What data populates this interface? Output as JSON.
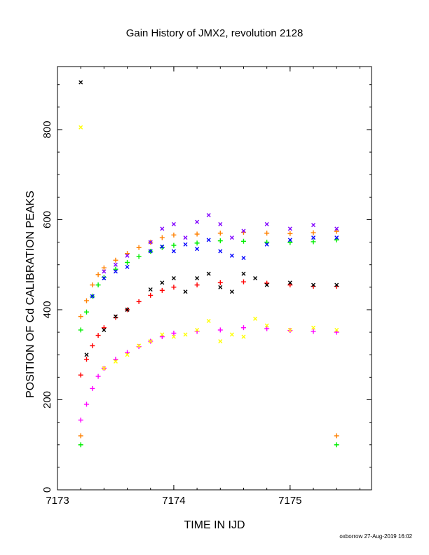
{
  "chart_data": {
    "type": "scatter",
    "title": "Gain History of JMX2, revolution 2128",
    "xlabel": "TIME IN IJD",
    "ylabel": "POSITION OF Cd CALIBRATION PEAKS",
    "xlim": [
      7173,
      7175.7
    ],
    "ylim": [
      0,
      940
    ],
    "x_ticks": [
      7173,
      7174,
      7175
    ],
    "y_ticks": [
      0,
      200,
      400,
      600,
      800
    ],
    "grid": false,
    "legend": "none",
    "footer": "oxborrow 27-Aug-2019 16:02",
    "series": [
      {
        "marker": "+",
        "color": "#ff8000",
        "points": [
          [
            7173.2,
            385
          ],
          [
            7173.25,
            420
          ],
          [
            7173.3,
            455
          ],
          [
            7173.35,
            478
          ],
          [
            7173.4,
            493
          ],
          [
            7173.5,
            510
          ],
          [
            7173.6,
            525
          ],
          [
            7173.7,
            538
          ],
          [
            7173.8,
            550
          ],
          [
            7173.9,
            560
          ],
          [
            7174.0,
            566
          ],
          [
            7174.2,
            568
          ],
          [
            7174.4,
            570
          ],
          [
            7174.6,
            572
          ],
          [
            7174.8,
            570
          ],
          [
            7175.0,
            569
          ],
          [
            7175.2,
            571
          ],
          [
            7175.4,
            574
          ]
        ]
      },
      {
        "marker": "+",
        "color": "#00ee00",
        "points": [
          [
            7173.2,
            355
          ],
          [
            7173.25,
            395
          ],
          [
            7173.3,
            430
          ],
          [
            7173.35,
            455
          ],
          [
            7173.4,
            472
          ],
          [
            7173.5,
            490
          ],
          [
            7173.6,
            505
          ],
          [
            7173.7,
            518
          ],
          [
            7173.8,
            530
          ],
          [
            7173.9,
            538
          ],
          [
            7174.0,
            543
          ],
          [
            7174.2,
            548
          ],
          [
            7174.4,
            553
          ],
          [
            7174.6,
            552
          ],
          [
            7174.8,
            550
          ],
          [
            7175.0,
            549
          ],
          [
            7175.2,
            551
          ],
          [
            7175.4,
            555
          ]
        ]
      },
      {
        "marker": "+",
        "color": "#ff0000",
        "points": [
          [
            7173.2,
            255
          ],
          [
            7173.25,
            290
          ],
          [
            7173.3,
            320
          ],
          [
            7173.35,
            343
          ],
          [
            7173.4,
            360
          ],
          [
            7173.5,
            383
          ],
          [
            7173.6,
            400
          ],
          [
            7173.7,
            418
          ],
          [
            7173.8,
            432
          ],
          [
            7173.9,
            443
          ],
          [
            7174.0,
            450
          ],
          [
            7174.2,
            455
          ],
          [
            7174.4,
            460
          ],
          [
            7174.6,
            462
          ],
          [
            7174.8,
            459
          ],
          [
            7175.0,
            455
          ],
          [
            7175.2,
            452
          ],
          [
            7175.4,
            452
          ]
        ]
      },
      {
        "marker": "+",
        "color": "#ff00ff",
        "points": [
          [
            7173.2,
            155
          ],
          [
            7173.25,
            190
          ],
          [
            7173.3,
            225
          ],
          [
            7173.35,
            252
          ],
          [
            7173.4,
            270
          ],
          [
            7173.5,
            290
          ],
          [
            7173.6,
            305
          ],
          [
            7173.7,
            318
          ],
          [
            7173.8,
            330
          ],
          [
            7173.9,
            340
          ],
          [
            7174.0,
            348
          ],
          [
            7174.2,
            352
          ],
          [
            7174.4,
            355
          ],
          [
            7174.6,
            360
          ],
          [
            7174.8,
            358
          ],
          [
            7175.0,
            354
          ],
          [
            7175.2,
            352
          ],
          [
            7175.4,
            350
          ]
        ]
      },
      {
        "marker": "x",
        "color": "#000000",
        "points": [
          [
            7173.2,
            905
          ],
          [
            7173.25,
            300
          ],
          [
            7173.4,
            355
          ],
          [
            7173.5,
            385
          ],
          [
            7173.6,
            400
          ],
          [
            7173.8,
            445
          ],
          [
            7173.9,
            460
          ],
          [
            7174.0,
            470
          ],
          [
            7174.1,
            440
          ],
          [
            7174.2,
            470
          ],
          [
            7174.3,
            480
          ],
          [
            7174.4,
            450
          ],
          [
            7174.5,
            440
          ],
          [
            7174.6,
            480
          ],
          [
            7174.7,
            470
          ],
          [
            7174.8,
            455
          ],
          [
            7175.0,
            460
          ],
          [
            7175.2,
            455
          ],
          [
            7175.4,
            455
          ]
        ]
      },
      {
        "marker": "x",
        "color": "#ffff00",
        "points": [
          [
            7173.2,
            805
          ],
          [
            7173.4,
            270
          ],
          [
            7173.5,
            285
          ],
          [
            7173.6,
            300
          ],
          [
            7173.7,
            320
          ],
          [
            7173.8,
            330
          ],
          [
            7173.9,
            345
          ],
          [
            7174.0,
            340
          ],
          [
            7174.1,
            345
          ],
          [
            7174.2,
            355
          ],
          [
            7174.3,
            375
          ],
          [
            7174.4,
            330
          ],
          [
            7174.5,
            345
          ],
          [
            7174.6,
            340
          ],
          [
            7174.7,
            380
          ],
          [
            7174.8,
            365
          ],
          [
            7175.0,
            355
          ],
          [
            7175.2,
            360
          ],
          [
            7175.4,
            355
          ]
        ]
      },
      {
        "marker": "x",
        "color": "#0000ff",
        "points": [
          [
            7173.3,
            430
          ],
          [
            7173.4,
            470
          ],
          [
            7173.5,
            485
          ],
          [
            7173.6,
            495
          ],
          [
            7173.8,
            530
          ],
          [
            7173.9,
            540
          ],
          [
            7174.0,
            530
          ],
          [
            7174.1,
            545
          ],
          [
            7174.2,
            535
          ],
          [
            7174.3,
            555
          ],
          [
            7174.4,
            530
          ],
          [
            7174.5,
            520
          ],
          [
            7174.6,
            515
          ],
          [
            7174.8,
            545
          ],
          [
            7175.0,
            555
          ],
          [
            7175.2,
            560
          ],
          [
            7175.4,
            560
          ]
        ]
      },
      {
        "marker": "x",
        "color": "#8000ff",
        "points": [
          [
            7173.4,
            485
          ],
          [
            7173.5,
            500
          ],
          [
            7173.6,
            520
          ],
          [
            7173.8,
            550
          ],
          [
            7173.9,
            580
          ],
          [
            7174.0,
            590
          ],
          [
            7174.1,
            560
          ],
          [
            7174.2,
            595
          ],
          [
            7174.3,
            610
          ],
          [
            7174.4,
            590
          ],
          [
            7174.5,
            560
          ],
          [
            7174.6,
            575
          ],
          [
            7174.8,
            590
          ],
          [
            7175.0,
            580
          ],
          [
            7175.2,
            588
          ],
          [
            7175.4,
            580
          ]
        ]
      },
      {
        "marker": "+",
        "color": "#ff8000",
        "points": [
          [
            7173.2,
            120
          ],
          [
            7175.4,
            120
          ]
        ]
      },
      {
        "marker": "+",
        "color": "#00ee00",
        "points": [
          [
            7173.2,
            100
          ],
          [
            7175.4,
            100
          ]
        ]
      }
    ]
  }
}
